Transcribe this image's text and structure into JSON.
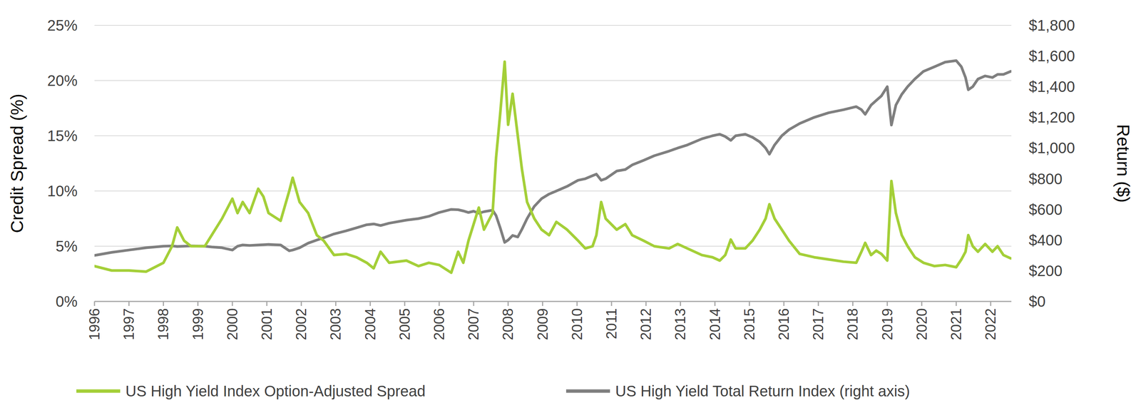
{
  "chart_data": {
    "type": "line",
    "ylabel": "Credit Spread (%)",
    "y2label": "Return ($)",
    "x": [
      1996.0,
      1996.5,
      1997.0,
      1997.5,
      1998.0,
      1998.25,
      1998.4,
      1998.6,
      1998.8,
      1999.2,
      1999.4,
      1999.7,
      2000.0,
      2000.15,
      2000.3,
      2000.5,
      2000.75,
      2000.9,
      2001.05,
      2001.4,
      2001.65,
      2001.75,
      2001.95,
      2002.2,
      2002.45,
      2002.65,
      2002.95,
      2003.3,
      2003.6,
      2003.9,
      2004.1,
      2004.3,
      2004.55,
      2005.05,
      2005.4,
      2005.7,
      2006.0,
      2006.35,
      2006.55,
      2006.7,
      2006.85,
      2007.0,
      2007.15,
      2007.3,
      2007.55,
      2007.65,
      2007.77,
      2007.9,
      2008.0,
      2008.13,
      2008.28,
      2008.4,
      2008.55,
      2008.76,
      2008.97,
      2009.19,
      2009.4,
      2009.71,
      2010.03,
      2010.24,
      2010.45,
      2010.56,
      2010.7,
      2010.83,
      2011.15,
      2011.4,
      2011.6,
      2011.93,
      2012.24,
      2012.67,
      2012.92,
      2013.2,
      2013.62,
      2013.93,
      2014.14,
      2014.3,
      2014.46,
      2014.6,
      2014.88,
      2015.09,
      2015.3,
      2015.47,
      2015.58,
      2015.73,
      2015.94,
      2016.15,
      2016.46,
      2016.88,
      2017.3,
      2017.73,
      2018.1,
      2018.25,
      2018.36,
      2018.53,
      2018.68,
      2018.83,
      2019.0,
      2019.12,
      2019.25,
      2019.42,
      2019.59,
      2019.8,
      2020.05,
      2020.37,
      2020.68,
      2021.0,
      2021.15,
      2021.27,
      2021.35,
      2021.48,
      2021.63,
      2021.84,
      2022.05,
      2022.2,
      2022.37,
      2022.58
    ],
    "series": [
      {
        "name": "US High Yield Index Option-Adjusted Spread",
        "color": "#a4cf38",
        "values": [
          3.2,
          2.8,
          2.8,
          2.7,
          3.5,
          5.0,
          6.7,
          5.5,
          5.0,
          5.0,
          6.0,
          7.5,
          9.3,
          8.0,
          9.0,
          8.0,
          10.2,
          9.5,
          8.0,
          7.3,
          10.0,
          11.2,
          9.0,
          8.0,
          6.0,
          5.5,
          4.2,
          4.3,
          4.0,
          3.5,
          3.0,
          4.5,
          3.5,
          3.7,
          3.2,
          3.5,
          3.3,
          2.6,
          4.5,
          3.5,
          5.5,
          7.0,
          8.5,
          6.5,
          8.0,
          13.0,
          17.0,
          21.7,
          16.0,
          18.8,
          15.0,
          12.0,
          9.0,
          7.5,
          6.5,
          6.0,
          7.2,
          6.5,
          5.5,
          4.8,
          5.0,
          6.0,
          9.0,
          7.5,
          6.5,
          7.0,
          6.0,
          5.5,
          5.0,
          4.8,
          5.2,
          4.8,
          4.2,
          4.0,
          3.7,
          4.2,
          5.6,
          4.8,
          4.8,
          5.5,
          6.5,
          7.5,
          8.8,
          7.5,
          6.5,
          5.5,
          4.3,
          4.0,
          3.8,
          3.6,
          3.5,
          4.5,
          5.3,
          4.2,
          4.6,
          4.3,
          3.7,
          10.9,
          8.0,
          6.0,
          5.0,
          4.0,
          3.5,
          3.2,
          3.3,
          3.1,
          3.8,
          4.5,
          6.0,
          5.0,
          4.5,
          5.2,
          4.5,
          5.0,
          4.2,
          3.9
        ]
      },
      {
        "name": "US High Yield Total Return Index (right axis)",
        "color": "#7f7f7f",
        "axis": "y2",
        "values": [
          300,
          320,
          335,
          350,
          360,
          362,
          358,
          360,
          362,
          360,
          355,
          350,
          335,
          360,
          368,
          365,
          368,
          370,
          372,
          368,
          330,
          335,
          350,
          380,
          400,
          415,
          440,
          460,
          480,
          500,
          505,
          495,
          510,
          530,
          540,
          555,
          580,
          600,
          598,
          590,
          580,
          588,
          575,
          585,
          595,
          560,
          480,
          385,
          400,
          430,
          420,
          470,
          540,
          620,
          670,
          700,
          720,
          750,
          790,
          800,
          820,
          830,
          790,
          800,
          850,
          860,
          890,
          920,
          950,
          980,
          1000,
          1020,
          1060,
          1080,
          1090,
          1075,
          1050,
          1080,
          1090,
          1070,
          1040,
          1000,
          960,
          1020,
          1080,
          1120,
          1160,
          1200,
          1230,
          1250,
          1270,
          1250,
          1220,
          1280,
          1310,
          1340,
          1400,
          1150,
          1280,
          1350,
          1400,
          1450,
          1500,
          1530,
          1560,
          1570,
          1530,
          1460,
          1380,
          1400,
          1450,
          1470,
          1460,
          1480,
          1480,
          1500
        ]
      }
    ],
    "xlim": [
      1996,
      2022.6
    ],
    "xticks": [
      1996,
      1997,
      1998,
      1999,
      2000,
      2001,
      2002,
      2003,
      2004,
      2005,
      2006,
      2007,
      2008,
      2009,
      2010,
      2011,
      2012,
      2013,
      2014,
      2015,
      2016,
      2017,
      2018,
      2019,
      2020,
      2021,
      2022
    ],
    "ylim": [
      0,
      25
    ],
    "yticks": [
      {
        "value": 0,
        "label": "0%"
      },
      {
        "value": 5,
        "label": "5%"
      },
      {
        "value": 10,
        "label": "10%"
      },
      {
        "value": 15,
        "label": "15%"
      },
      {
        "value": 20,
        "label": "20%"
      },
      {
        "value": 25,
        "label": "25%"
      }
    ],
    "y2lim": [
      0,
      1800
    ],
    "y2ticks": [
      {
        "value": 0,
        "label": "$0"
      },
      {
        "value": 200,
        "label": "$200"
      },
      {
        "value": 400,
        "label": "$400"
      },
      {
        "value": 600,
        "label": "$600"
      },
      {
        "value": 800,
        "label": "$800"
      },
      {
        "value": 1000,
        "label": "$1,000"
      },
      {
        "value": 1200,
        "label": "$1,200"
      },
      {
        "value": 1400,
        "label": "$1,400"
      },
      {
        "value": 1600,
        "label": "$1,600"
      },
      {
        "value": 1800,
        "label": "$1,800"
      }
    ],
    "grid": true,
    "legend": "bottom"
  }
}
